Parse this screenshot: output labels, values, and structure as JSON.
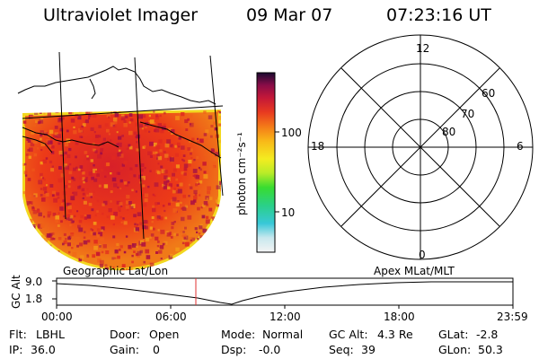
{
  "header": {
    "title": "Ultraviolet Imager",
    "date": "09 Mar 07",
    "time": "07:23:16 UT"
  },
  "colorbar": {
    "unit_label": "photon cm⁻²s⁻¹",
    "ticks": [
      "100",
      "10"
    ]
  },
  "polar_plot": {
    "mlt_labels": {
      "top": "12",
      "right": "6",
      "bottom": "0",
      "left": "18"
    },
    "lat_labels": [
      "60",
      "70",
      "80"
    ]
  },
  "timeline": {
    "left_label": "Geographic Lat/Lon",
    "right_label": "Apex MLat/MLT",
    "y_axis_label": "GC Alt",
    "y_ticks": [
      "9.0",
      "1.8"
    ],
    "x_ticks": [
      "00:00",
      "06:00",
      "12:00",
      "18:00",
      "23:59"
    ],
    "current_time_marker": "07:23"
  },
  "info": {
    "rows": [
      [
        {
          "key": "Flt:",
          "value": "LBHL"
        },
        {
          "key": "Door:",
          "value": "Open"
        },
        {
          "key": "Mode:",
          "value": "Normal"
        },
        {
          "key": "GC Alt:",
          "value": "4.3 Re"
        },
        {
          "key": "GLat:",
          "value": "-2.8"
        }
      ],
      [
        {
          "key": "IP:",
          "value": "36.0"
        },
        {
          "key": "Gain:",
          "value": "0"
        },
        {
          "key": "Dsp:",
          "value": "-0.0"
        },
        {
          "key": "Seq:",
          "value": "39"
        },
        {
          "key": "GLon:",
          "value": "50.3"
        }
      ]
    ]
  },
  "colors": {
    "frame": "#000000",
    "time_marker": "#e03030",
    "image_base": "#ee3a18",
    "image_hot": "#b0102a",
    "image_edge": "#f0a020"
  }
}
